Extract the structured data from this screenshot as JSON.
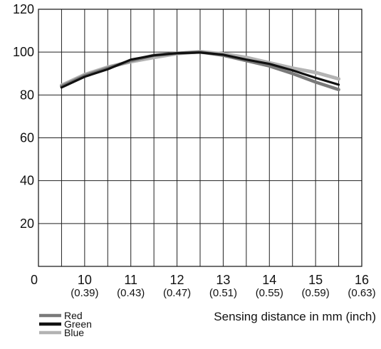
{
  "chart_data": {
    "type": "line",
    "title": "",
    "xlabel": "Sensing distance in mm (inch)",
    "ylabel": "",
    "xlim": [
      10,
      16
    ],
    "ylim": [
      0,
      120
    ],
    "grid": true,
    "legend_position": "bottom-left",
    "x_ticks": [
      {
        "value": 10,
        "label": "10",
        "sub": "(0.39)"
      },
      {
        "value": 11,
        "label": "11",
        "sub": "(0.43)"
      },
      {
        "value": 12,
        "label": "12",
        "sub": "(0.47)"
      },
      {
        "value": 13,
        "label": "13",
        "sub": "(0.51)"
      },
      {
        "value": 14,
        "label": "14",
        "sub": "(0.55)"
      },
      {
        "value": 15,
        "label": "15",
        "sub": "(0.59)"
      },
      {
        "value": 16,
        "label": "16",
        "sub": "(0.63)"
      }
    ],
    "x_origin_label": "0",
    "y_ticks": [
      {
        "value": 20,
        "label": "20"
      },
      {
        "value": 40,
        "label": "40"
      },
      {
        "value": 60,
        "label": "60"
      },
      {
        "value": 80,
        "label": "80"
      },
      {
        "value": 100,
        "label": "100"
      },
      {
        "value": 120,
        "label": "120"
      }
    ],
    "series": [
      {
        "name": "Red",
        "color": "#7a7a7a",
        "x": [
          9.5,
          10,
          10.5,
          11,
          11.5,
          12,
          12.5,
          13,
          13.5,
          14,
          14.5,
          15,
          15.5
        ],
        "y": [
          84,
          89,
          92.5,
          96,
          98.5,
          99.5,
          100,
          98.5,
          96,
          93.5,
          90,
          86,
          82.5
        ]
      },
      {
        "name": "Green",
        "color": "#111111",
        "x": [
          9.5,
          10,
          10.5,
          11,
          11.5,
          12,
          12.5,
          13,
          13.5,
          14,
          14.5,
          15,
          15.5
        ],
        "y": [
          83.5,
          88.5,
          92,
          96.5,
          98.5,
          99.5,
          99.8,
          98.8,
          96.5,
          94.5,
          91.5,
          88,
          84.8
        ]
      },
      {
        "name": "Blue",
        "color": "#b3b3b3",
        "x": [
          9.5,
          10,
          10.5,
          11,
          11.5,
          12,
          12.5,
          13,
          13.5,
          14,
          14.5,
          15,
          15.5
        ],
        "y": [
          84.5,
          89.5,
          93,
          95.5,
          97.5,
          99.3,
          100.2,
          99.2,
          97.5,
          95,
          92.5,
          90.5,
          87.5
        ]
      }
    ]
  }
}
